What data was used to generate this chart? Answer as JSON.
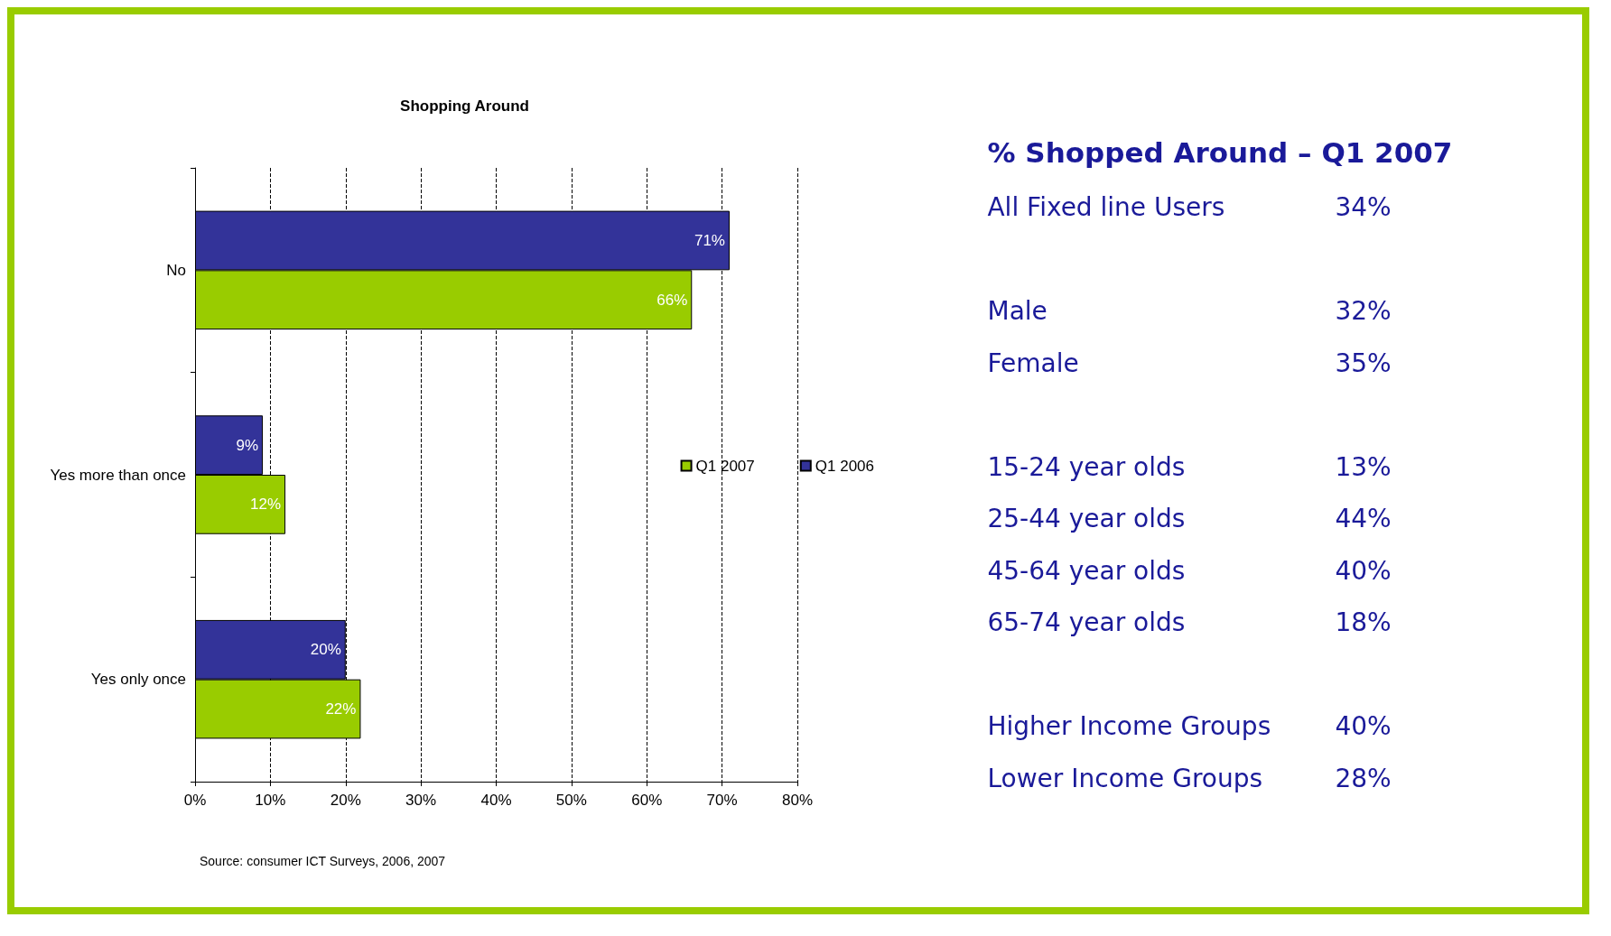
{
  "chart_data": [
    {
      "type": "bar",
      "orientation": "horizontal",
      "title": "Shopping Around",
      "categories": [
        "No",
        "Yes more than once",
        "Yes only once"
      ],
      "series": [
        {
          "name": "Q1 2006",
          "color": "#333399",
          "values": [
            71,
            9,
            20
          ],
          "value_labels": [
            "71%",
            "9%",
            "20%"
          ]
        },
        {
          "name": "Q1 2007",
          "color": "#99cc00",
          "values": [
            66,
            12,
            22
          ],
          "value_labels": [
            "66%",
            "12%",
            "22%"
          ]
        }
      ],
      "xlim": [
        0,
        80
      ],
      "xticks": [
        {
          "value": 0,
          "label": "0%"
        },
        {
          "value": 10,
          "label": "10%"
        },
        {
          "value": 20,
          "label": "20%"
        },
        {
          "value": 30,
          "label": "30%"
        },
        {
          "value": 40,
          "label": "40%"
        },
        {
          "value": 50,
          "label": "50%"
        },
        {
          "value": 60,
          "label": "60%"
        },
        {
          "value": 70,
          "label": "70%"
        },
        {
          "value": 80,
          "label": "80%"
        }
      ],
      "grid": "x",
      "legend": "right",
      "annotations": [
        "Source: consumer ICT Surveys, 2006, 2007"
      ]
    },
    {
      "type": "other",
      "title": "% Shopped Around – Q1 2007",
      "categories": [
        "All Fixed line Users",
        null,
        "Male",
        "Female",
        null,
        "15-24 year olds",
        "25-44 year olds",
        "45-64 year olds",
        "65-74 year olds",
        null,
        "Higher Income Groups",
        "Lower Income Groups"
      ],
      "value_labels": [
        "34%",
        null,
        "32%",
        "35%",
        null,
        "13%",
        "44%",
        "40%",
        "18%",
        null,
        "40%",
        "28%"
      ],
      "color": "#1a1a99"
    }
  ]
}
